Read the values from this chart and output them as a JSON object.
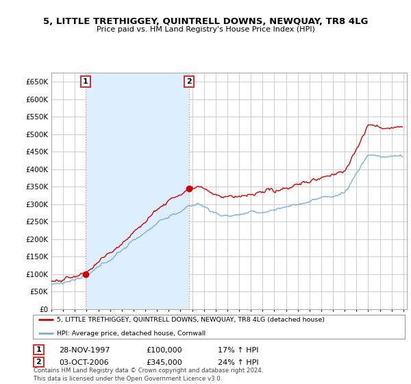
{
  "title": "5, LITTLE TRETHIGGEY, QUINTRELL DOWNS, NEWQUAY, TR8 4LG",
  "subtitle": "Price paid vs. HM Land Registry's House Price Index (HPI)",
  "ylim": [
    0,
    675000
  ],
  "yticks": [
    0,
    50000,
    100000,
    150000,
    200000,
    250000,
    300000,
    350000,
    400000,
    450000,
    500000,
    550000,
    600000,
    650000
  ],
  "sale1_date": 1997.91,
  "sale1_price": 100000,
  "sale2_date": 2006.75,
  "sale2_price": 345000,
  "red_line_color": "#cc0000",
  "blue_line_color": "#7aaedb",
  "shade_color": "#ddeeff",
  "grid_color": "#cccccc",
  "vline_color": "#ee8888",
  "background_color": "#ffffff",
  "plot_bg_color": "#ffffff",
  "legend_label_red": "5, LITTLE TRETHIGGEY, QUINTRELL DOWNS, NEWQUAY, TR8 4LG (detached house)",
  "legend_label_blue": "HPI: Average price, detached house, Cornwall",
  "table_row1": [
    "1",
    "28-NOV-1997",
    "£100,000",
    "17% ↑ HPI"
  ],
  "table_row2": [
    "2",
    "03-OCT-2006",
    "£345,000",
    "24% ↑ HPI"
  ],
  "footer": "Contains HM Land Registry data © Crown copyright and database right 2024.\nThis data is licensed under the Open Government Licence v3.0.",
  "xlim_start": 1995,
  "xlim_end": 2025.3
}
